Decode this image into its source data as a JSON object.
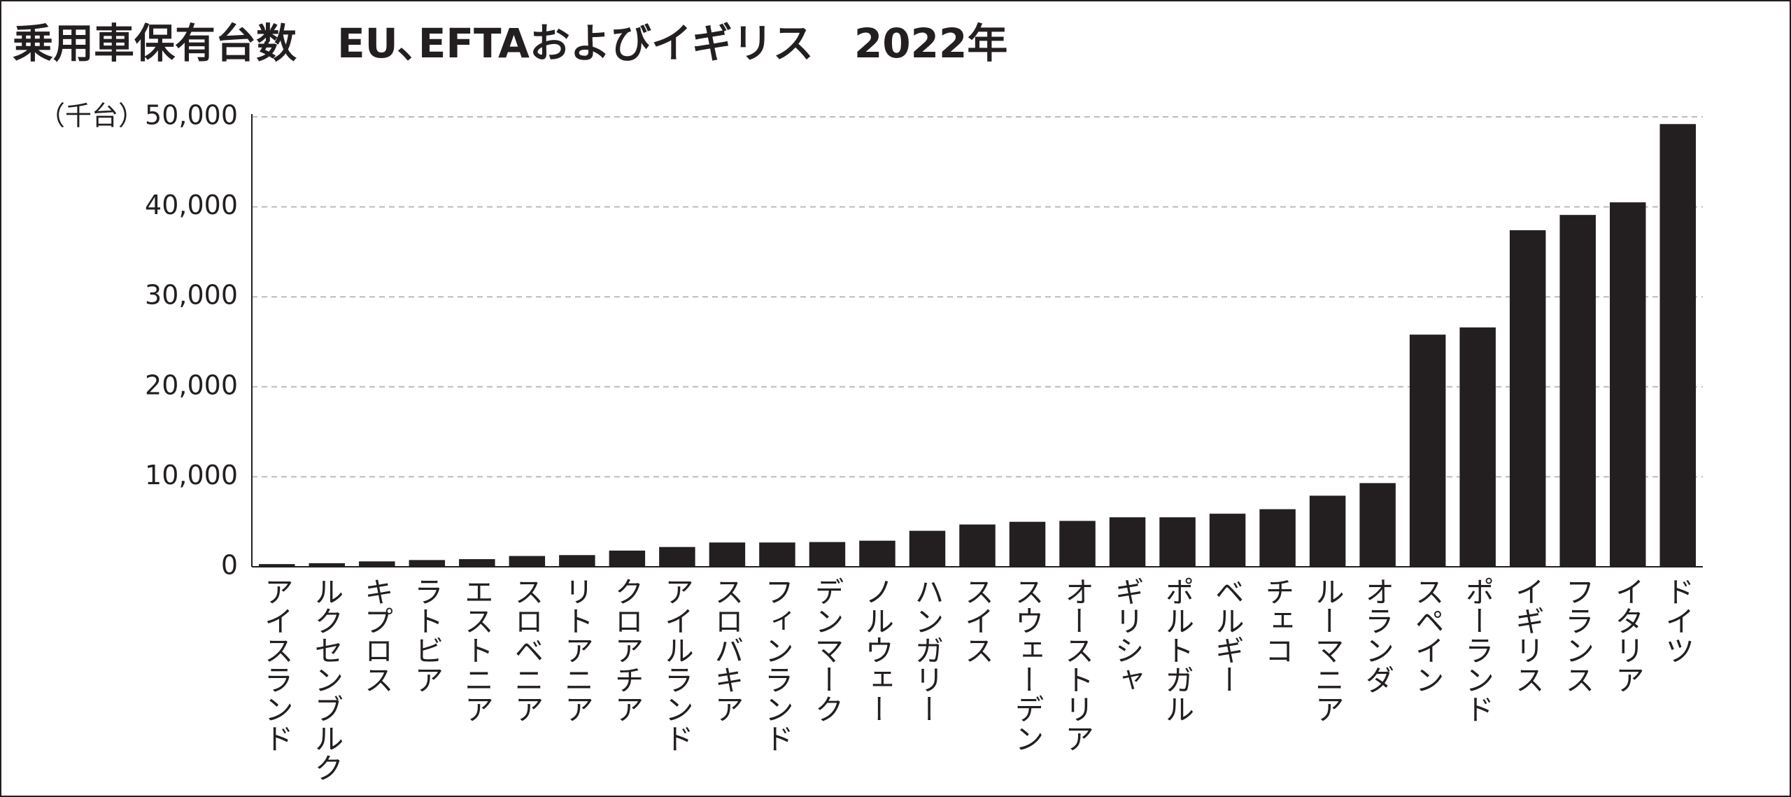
{
  "chart_data": {
    "type": "bar",
    "title": "乗用車保有台数　EU､EFTAおよびイギリス　2022年",
    "y_label": "（千台）",
    "categories": [
      "アイスランド",
      "ルクセンブルク",
      "キプロス",
      "ラトビア",
      "エストニア",
      "スロベニア",
      "リトアニア",
      "クロアチア",
      "アイルランド",
      "スロバキア",
      "フィンランド",
      "デンマーク",
      "ノルウェー",
      "ハンガリー",
      "スイス",
      "スウェーデン",
      "オーストリア",
      "ギリシャ",
      "ポルトガル",
      "ベルギー",
      "チェコ",
      "ルーマニア",
      "オランダ",
      "スペイン",
      "ポーランド",
      "イギリス",
      "フランス",
      "イタリア",
      "ドイツ"
    ],
    "values": [
      300,
      400,
      600,
      750,
      850,
      1200,
      1300,
      1800,
      2200,
      2700,
      2700,
      2750,
      2900,
      4000,
      4700,
      5000,
      5100,
      5500,
      5500,
      5900,
      6400,
      7900,
      9300,
      25800,
      26600,
      37400,
      39100,
      40500,
      49200
    ],
    "color": "#231f20",
    "ylim": [
      0,
      50000
    ],
    "yticks": [
      0,
      {
        "value": 10000,
        "label": "10,000"
      },
      {
        "value": 20000,
        "label": "20,000"
      },
      {
        "value": 30000,
        "label": "30,000"
      },
      {
        "value": 40000,
        "label": "40,000"
      },
      {
        "value": 50000,
        "label": "50,000"
      }
    ],
    "grid": true
  }
}
